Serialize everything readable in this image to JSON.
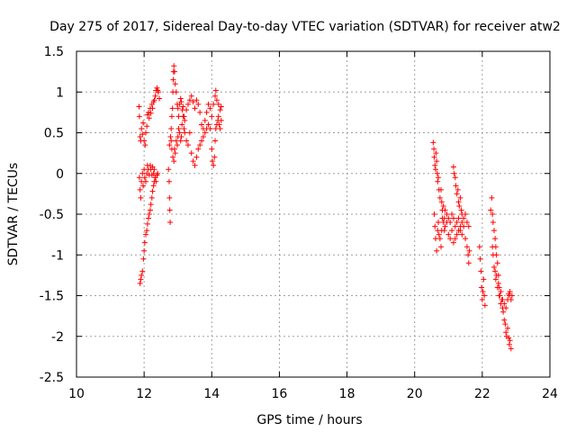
{
  "chart_data": {
    "type": "scatter",
    "title": "Day 275 of 2017, Sidereal Day-to-day VTEC variation (SDTVAR) for receiver atw2",
    "xlabel": "GPS time / hours",
    "ylabel": "SDTVAR / TECUs",
    "xlim": [
      10,
      24
    ],
    "ylim": [
      -2.5,
      1.5
    ],
    "xticks": [
      10,
      12,
      14,
      16,
      18,
      20,
      22,
      24
    ],
    "yticks": [
      1.5,
      1,
      0.5,
      0,
      -0.5,
      -1,
      -1.5,
      -2,
      -2.5
    ],
    "xtick_labels": [
      "10",
      "12",
      "14",
      "16",
      "18",
      "20",
      "22",
      "24"
    ],
    "ytick_labels": [
      "1.5",
      "1",
      "0.5",
      "0",
      "-0.5",
      "-1",
      "-1.5",
      "-2",
      "-2.5"
    ],
    "grid": true,
    "marker": "+",
    "color": "#ff0000",
    "series": [
      {
        "name": "atw2",
        "points": [
          [
            11.85,
            0.82
          ],
          [
            11.86,
            0.7
          ],
          [
            11.88,
            0.45
          ],
          [
            11.9,
            0.4
          ],
          [
            11.92,
            0.55
          ],
          [
            11.95,
            0.48
          ],
          [
            11.97,
            0.62
          ],
          [
            12.0,
            0.4
          ],
          [
            12.03,
            0.35
          ],
          [
            12.05,
            0.5
          ],
          [
            12.08,
            0.58
          ],
          [
            12.1,
            0.72
          ],
          [
            12.13,
            0.75
          ],
          [
            12.15,
            0.68
          ],
          [
            12.18,
            0.8
          ],
          [
            12.2,
            0.74
          ],
          [
            12.23,
            0.85
          ],
          [
            12.25,
            0.8
          ],
          [
            12.28,
            0.88
          ],
          [
            12.3,
            0.9
          ],
          [
            12.33,
            0.95
          ],
          [
            12.35,
            1.02
          ],
          [
            12.38,
            1.05
          ],
          [
            12.4,
            1.02
          ],
          [
            12.42,
            1.0
          ],
          [
            12.45,
            0.92
          ],
          [
            11.86,
            -0.05
          ],
          [
            11.88,
            -0.2
          ],
          [
            11.9,
            -0.3
          ],
          [
            11.92,
            -0.1
          ],
          [
            11.95,
            0.0
          ],
          [
            11.97,
            -0.15
          ],
          [
            12.0,
            0.05
          ],
          [
            12.02,
            -0.05
          ],
          [
            12.05,
            -0.1
          ],
          [
            12.08,
            0.0
          ],
          [
            12.1,
            0.1
          ],
          [
            12.12,
            0.05
          ],
          [
            12.15,
            -0.02
          ],
          [
            12.18,
            0.1
          ],
          [
            12.2,
            0.05
          ],
          [
            12.23,
            -0.02
          ],
          [
            12.25,
            0.08
          ],
          [
            12.28,
            0.0
          ],
          [
            12.3,
            0.05
          ],
          [
            12.33,
            -0.05
          ],
          [
            12.35,
            -0.1
          ],
          [
            12.38,
            -0.02
          ],
          [
            12.4,
            0.0
          ],
          [
            11.88,
            -1.35
          ],
          [
            11.9,
            -1.3
          ],
          [
            11.92,
            -1.25
          ],
          [
            11.95,
            -1.2
          ],
          [
            11.98,
            -1.05
          ],
          [
            12.0,
            -0.95
          ],
          [
            12.02,
            -0.85
          ],
          [
            12.05,
            -0.75
          ],
          [
            12.08,
            -0.7
          ],
          [
            12.1,
            -0.62
          ],
          [
            12.13,
            -0.55
          ],
          [
            12.15,
            -0.5
          ],
          [
            12.18,
            -0.45
          ],
          [
            12.2,
            -0.38
          ],
          [
            12.23,
            -0.3
          ],
          [
            12.25,
            -0.22
          ],
          [
            12.28,
            -0.15
          ],
          [
            12.3,
            -0.1
          ],
          [
            12.33,
            -0.05
          ],
          [
            12.72,
            0.05
          ],
          [
            12.74,
            -0.1
          ],
          [
            12.75,
            -0.3
          ],
          [
            12.76,
            -0.45
          ],
          [
            12.77,
            -0.6
          ],
          [
            12.75,
            0.35
          ],
          [
            12.78,
            0.45
          ],
          [
            12.8,
            0.55
          ],
          [
            12.82,
            0.7
          ],
          [
            12.84,
            0.8
          ],
          [
            12.85,
            1.0
          ],
          [
            12.86,
            1.15
          ],
          [
            12.87,
            1.25
          ],
          [
            12.88,
            1.32
          ],
          [
            12.9,
            1.25
          ],
          [
            12.92,
            1.1
          ],
          [
            12.95,
            1.0
          ],
          [
            12.98,
            0.85
          ],
          [
            13.0,
            0.8
          ],
          [
            13.02,
            0.7
          ],
          [
            13.05,
            0.85
          ],
          [
            13.08,
            0.92
          ],
          [
            13.1,
            0.88
          ],
          [
            13.13,
            0.78
          ],
          [
            13.15,
            0.82
          ],
          [
            13.18,
            0.7
          ],
          [
            13.2,
            0.65
          ],
          [
            13.25,
            0.78
          ],
          [
            13.3,
            0.85
          ],
          [
            13.35,
            0.9
          ],
          [
            13.4,
            0.95
          ],
          [
            13.45,
            0.88
          ],
          [
            13.5,
            0.8
          ],
          [
            13.55,
            0.9
          ],
          [
            13.6,
            0.85
          ],
          [
            13.65,
            0.75
          ],
          [
            13.7,
            0.6
          ],
          [
            13.75,
            0.55
          ],
          [
            13.8,
            0.65
          ],
          [
            13.85,
            0.75
          ],
          [
            13.9,
            0.85
          ],
          [
            13.95,
            0.8
          ],
          [
            14.0,
            0.7
          ],
          [
            14.05,
            0.85
          ],
          [
            14.1,
            0.95
          ],
          [
            14.12,
            1.02
          ],
          [
            14.15,
            0.9
          ],
          [
            14.2,
            0.85
          ],
          [
            14.25,
            0.78
          ],
          [
            14.28,
            0.82
          ],
          [
            12.8,
            0.4
          ],
          [
            12.82,
            0.3
          ],
          [
            12.85,
            0.2
          ],
          [
            12.88,
            0.15
          ],
          [
            12.9,
            0.3
          ],
          [
            12.92,
            0.25
          ],
          [
            12.95,
            0.4
          ],
          [
            12.98,
            0.35
          ],
          [
            13.0,
            0.45
          ],
          [
            13.02,
            0.55
          ],
          [
            13.05,
            0.5
          ],
          [
            13.08,
            0.4
          ],
          [
            13.1,
            0.45
          ],
          [
            13.12,
            0.6
          ],
          [
            13.15,
            0.7
          ],
          [
            13.18,
            0.55
          ],
          [
            13.2,
            0.5
          ],
          [
            13.25,
            0.4
          ],
          [
            13.3,
            0.35
          ],
          [
            13.35,
            0.5
          ],
          [
            13.4,
            0.25
          ],
          [
            13.45,
            0.15
          ],
          [
            13.5,
            0.1
          ],
          [
            13.55,
            0.2
          ],
          [
            13.6,
            0.3
          ],
          [
            13.65,
            0.35
          ],
          [
            13.7,
            0.4
          ],
          [
            13.75,
            0.45
          ],
          [
            13.8,
            0.5
          ],
          [
            13.85,
            0.55
          ],
          [
            13.9,
            0.6
          ],
          [
            13.95,
            0.55
          ],
          [
            14.0,
            0.3
          ],
          [
            14.02,
            0.15
          ],
          [
            14.05,
            0.1
          ],
          [
            14.08,
            0.2
          ],
          [
            14.1,
            0.4
          ],
          [
            14.12,
            0.55
          ],
          [
            14.15,
            0.6
          ],
          [
            14.18,
            0.65
          ],
          [
            14.2,
            0.7
          ],
          [
            14.22,
            0.6
          ],
          [
            14.25,
            0.55
          ],
          [
            14.28,
            0.65
          ],
          [
            20.55,
            0.38
          ],
          [
            20.57,
            0.3
          ],
          [
            20.58,
            0.2
          ],
          [
            20.6,
            0.1
          ],
          [
            20.62,
            0.05
          ],
          [
            20.63,
            0.25
          ],
          [
            20.65,
            0.15
          ],
          [
            20.67,
            0.0
          ],
          [
            20.68,
            -0.1
          ],
          [
            20.7,
            -0.05
          ],
          [
            20.72,
            -0.2
          ],
          [
            20.75,
            -0.3
          ],
          [
            20.78,
            -0.2
          ],
          [
            20.8,
            -0.35
          ],
          [
            20.82,
            -0.45
          ],
          [
            20.85,
            -0.4
          ],
          [
            20.88,
            -0.55
          ],
          [
            20.9,
            -0.45
          ],
          [
            20.95,
            -0.5
          ],
          [
            21.0,
            -0.55
          ],
          [
            21.05,
            -0.6
          ],
          [
            21.1,
            -0.5
          ],
          [
            21.15,
            -0.55
          ],
          [
            21.2,
            -0.65
          ],
          [
            21.25,
            -0.6
          ],
          [
            21.3,
            -0.55
          ],
          [
            21.35,
            -0.7
          ],
          [
            21.4,
            -0.75
          ],
          [
            21.45,
            -0.65
          ],
          [
            21.5,
            -0.8
          ],
          [
            21.55,
            -0.9
          ],
          [
            21.58,
            -1.0
          ],
          [
            21.6,
            -1.1
          ],
          [
            21.62,
            -0.95
          ],
          [
            20.58,
            -0.5
          ],
          [
            20.6,
            -0.65
          ],
          [
            20.62,
            -0.8
          ],
          [
            20.65,
            -0.95
          ],
          [
            20.68,
            -0.7
          ],
          [
            20.7,
            -0.6
          ],
          [
            20.72,
            -0.75
          ],
          [
            20.75,
            -0.8
          ],
          [
            20.78,
            -0.9
          ],
          [
            20.8,
            -0.7
          ],
          [
            20.82,
            -0.55
          ],
          [
            20.85,
            -0.6
          ],
          [
            20.88,
            -0.7
          ],
          [
            20.9,
            -0.65
          ],
          [
            20.95,
            -0.6
          ],
          [
            21.0,
            -0.75
          ],
          [
            21.05,
            -0.8
          ],
          [
            21.1,
            -0.7
          ],
          [
            21.15,
            -0.85
          ],
          [
            21.2,
            -0.8
          ],
          [
            21.25,
            -0.75
          ],
          [
            21.3,
            -0.7
          ],
          [
            21.35,
            -0.65
          ],
          [
            21.4,
            -0.6
          ],
          [
            21.15,
            0.08
          ],
          [
            21.17,
            0.0
          ],
          [
            21.2,
            -0.05
          ],
          [
            21.22,
            -0.15
          ],
          [
            21.25,
            -0.25
          ],
          [
            21.28,
            -0.2
          ],
          [
            21.3,
            -0.35
          ],
          [
            21.32,
            -0.4
          ],
          [
            21.35,
            -0.3
          ],
          [
            21.38,
            -0.45
          ],
          [
            21.4,
            -0.5
          ],
          [
            21.45,
            -0.55
          ],
          [
            21.5,
            -0.5
          ],
          [
            21.55,
            -0.6
          ],
          [
            21.6,
            -0.65
          ],
          [
            21.92,
            -0.9
          ],
          [
            21.94,
            -1.05
          ],
          [
            21.96,
            -1.2
          ],
          [
            21.98,
            -1.4
          ],
          [
            22.0,
            -1.55
          ],
          [
            22.02,
            -1.45
          ],
          [
            22.04,
            -1.3
          ],
          [
            22.06,
            -1.5
          ],
          [
            22.08,
            -1.62
          ],
          [
            22.25,
            -0.45
          ],
          [
            22.28,
            -0.3
          ],
          [
            22.3,
            -0.5
          ],
          [
            22.32,
            -0.6
          ],
          [
            22.35,
            -0.7
          ],
          [
            22.38,
            -0.8
          ],
          [
            22.4,
            -0.9
          ],
          [
            22.42,
            -1.0
          ],
          [
            22.45,
            -1.1
          ],
          [
            22.48,
            -1.25
          ],
          [
            22.5,
            -1.4
          ],
          [
            22.52,
            -1.5
          ],
          [
            22.55,
            -1.6
          ],
          [
            22.58,
            -1.55
          ],
          [
            22.6,
            -1.65
          ],
          [
            22.62,
            -1.7
          ],
          [
            22.65,
            -1.8
          ],
          [
            22.68,
            -1.85
          ],
          [
            22.7,
            -1.95
          ],
          [
            22.72,
            -2.0
          ],
          [
            22.75,
            -1.9
          ],
          [
            22.78,
            -2.02
          ],
          [
            22.8,
            -2.1
          ],
          [
            22.82,
            -2.05
          ],
          [
            22.85,
            -2.15
          ],
          [
            22.3,
            -0.9
          ],
          [
            22.32,
            -1.0
          ],
          [
            22.35,
            -1.15
          ],
          [
            22.38,
            -1.2
          ],
          [
            22.4,
            -1.3
          ],
          [
            22.42,
            -1.25
          ],
          [
            22.45,
            -1.4
          ],
          [
            22.48,
            -1.35
          ],
          [
            22.5,
            -1.5
          ],
          [
            22.55,
            -1.45
          ],
          [
            22.6,
            -1.55
          ],
          [
            22.65,
            -1.6
          ],
          [
            22.7,
            -1.65
          ],
          [
            22.75,
            -1.55
          ],
          [
            22.78,
            -1.48
          ],
          [
            22.8,
            -1.5
          ],
          [
            22.82,
            -1.45
          ],
          [
            22.85,
            -1.55
          ],
          [
            22.88,
            -1.5
          ]
        ]
      }
    ]
  }
}
